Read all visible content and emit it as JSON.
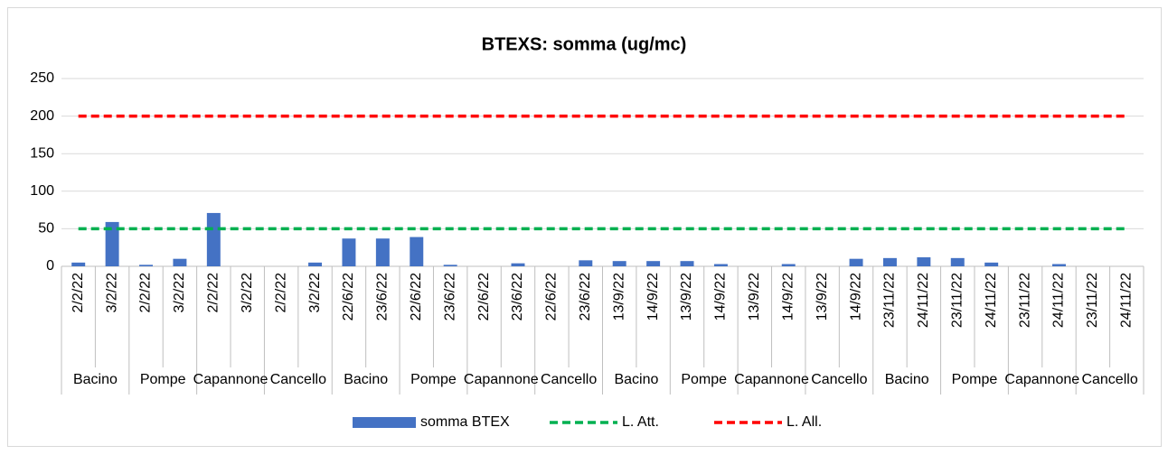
{
  "chart_data": {
    "type": "bar",
    "title": "BTEXS: somma (ug/mc)",
    "categories": [
      "2/2/22",
      "3/2/22",
      "2/2/22",
      "3/2/22",
      "2/2/22",
      "3/2/22",
      "2/2/22",
      "3/2/22",
      "22/6/22",
      "23/6/22",
      "22/6/22",
      "23/6/22",
      "22/6/22",
      "23/6/22",
      "22/6/22",
      "23/6/22",
      "13/9/22",
      "14/9/22",
      "13/9/22",
      "14/9/22",
      "13/9/22",
      "14/9/22",
      "13/9/22",
      "14/9/22",
      "23/11/22",
      "24/11/22",
      "23/11/22",
      "24/11/22",
      "23/11/22",
      "24/11/22",
      "23/11/22",
      "24/11/22"
    ],
    "groups": [
      "Bacino",
      "Pompe",
      "Capannone",
      "Cancello",
      "Bacino",
      "Pompe",
      "Capannone",
      "Cancello",
      "Bacino",
      "Pompe",
      "Capannone",
      "Cancello",
      "Bacino",
      "Pompe",
      "Capannone",
      "Cancello"
    ],
    "series": [
      {
        "name": "somma BTEX",
        "type": "bar",
        "color": "#4472c4",
        "values": [
          5,
          59,
          2,
          10,
          71,
          null,
          null,
          5,
          37,
          37,
          39,
          2,
          null,
          4,
          null,
          8,
          7,
          7,
          7,
          3,
          null,
          3,
          null,
          10,
          11,
          12,
          11,
          5,
          null,
          3,
          null,
          null
        ]
      },
      {
        "name": "L. Att.",
        "type": "line",
        "color": "#00b050",
        "values": [
          50,
          50,
          50,
          50,
          50,
          50,
          50,
          50,
          50,
          50,
          50,
          50,
          50,
          50,
          50,
          50,
          50,
          50,
          50,
          50,
          50,
          50,
          50,
          50,
          50,
          50,
          50,
          50,
          50,
          50,
          50,
          50
        ]
      },
      {
        "name": "L. All.",
        "type": "line",
        "color": "#ff0000",
        "values": [
          200,
          200,
          200,
          200,
          200,
          200,
          200,
          200,
          200,
          200,
          200,
          200,
          200,
          200,
          200,
          200,
          200,
          200,
          200,
          200,
          200,
          200,
          200,
          200,
          200,
          200,
          200,
          200,
          200,
          200,
          200,
          200
        ]
      }
    ],
    "ylim": [
      0,
      250
    ],
    "yticks": [
      0,
      50,
      100,
      150,
      200,
      250
    ],
    "grid": true,
    "legend": "bottom"
  }
}
